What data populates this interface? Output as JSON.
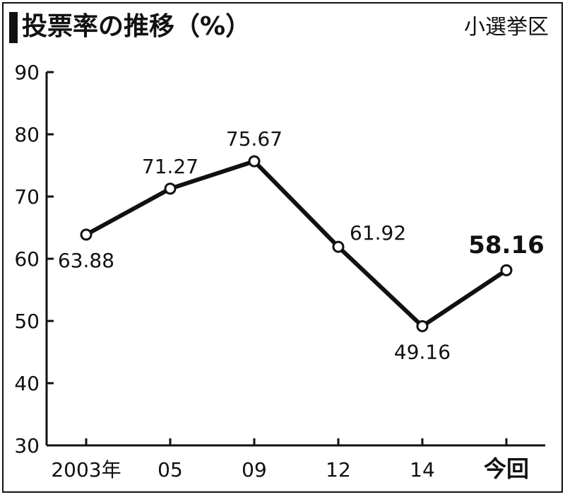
{
  "header": {
    "title": "投票率の推移（%）",
    "subtitle": "小選挙区"
  },
  "chart_data": {
    "type": "line",
    "title": "投票率の推移（%）",
    "subtitle": "小選挙区",
    "categories": [
      "2003年",
      "05",
      "09",
      "12",
      "14",
      "今回"
    ],
    "values": [
      63.88,
      71.27,
      75.67,
      61.92,
      49.16,
      58.16
    ],
    "value_labels": [
      "63.88",
      "71.27",
      "75.67",
      "61.92",
      "49.16",
      "58.16"
    ],
    "highlight_index": 5,
    "ylim": [
      30,
      90
    ],
    "yticks": [
      30,
      40,
      50,
      60,
      70,
      80,
      90
    ],
    "ytick_labels": [
      "30",
      "40",
      "50",
      "60",
      "70",
      "80",
      "90"
    ],
    "grid": false,
    "legend": "none",
    "colors": {
      "line": "#111111",
      "marker_fill": "#ffffff",
      "text": "#111111"
    }
  }
}
